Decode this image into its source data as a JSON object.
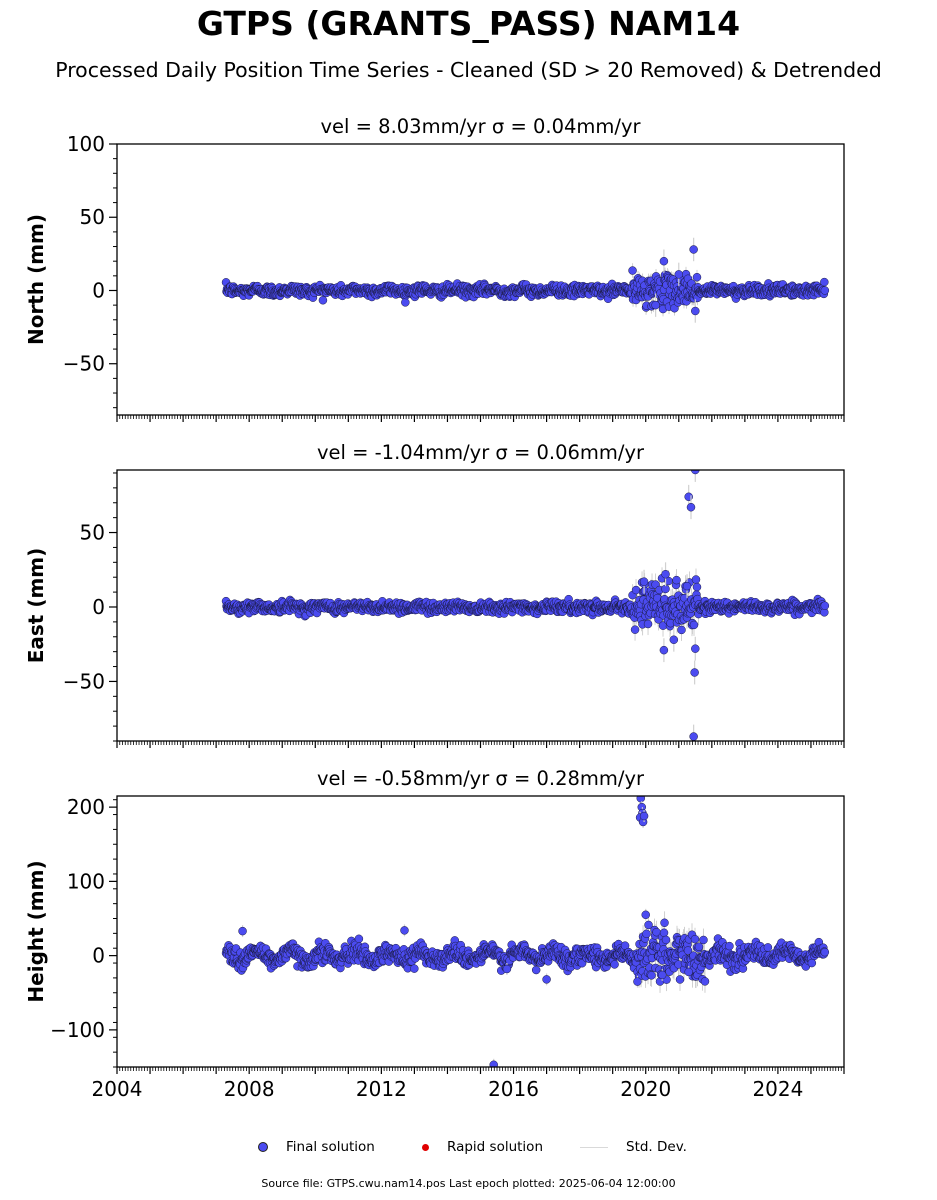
{
  "title": "GTPS (GRANTS_PASS) NAM14",
  "subtitle": "Processed Daily Position Time Series - Cleaned (SD > 20 Removed) & Detrended",
  "legend": {
    "final": "Final solution",
    "rapid": "Rapid solution",
    "sd": "Std. Dev."
  },
  "footer": "Source file: GTPS.cwu.nam14.pos  Last epoch plotted: 2025-06-04 12:00:00",
  "colors": {
    "final_marker": "#4b4bf0",
    "rapid_marker": "#e00000",
    "std_dev": "#d0d0d0"
  },
  "chart_data": [
    {
      "type": "scatter",
      "title": "vel = 8.03mm/yr   σ = 0.04mm/yr",
      "ylabel": "North (mm)",
      "xlim": [
        2004.0,
        2026.0
      ],
      "ylim": [
        -85,
        100
      ],
      "yticks": [
        -50,
        0,
        50,
        100
      ],
      "x_start": 2007.3,
      "x_end": 2025.42,
      "base_noise": 1.8,
      "x_tick_labels": [],
      "outliers": [
        {
          "x": 2020.55,
          "y": 20
        },
        {
          "x": 2021.45,
          "y": 28
        },
        {
          "x": 2021.5,
          "y": -14
        },
        {
          "x": 2021.0,
          "y": 11
        },
        {
          "x": 2020.3,
          "y": -10
        }
      ],
      "noisy_intervals": [
        {
          "x0": 2019.6,
          "x1": 2021.6,
          "amp": 5
        }
      ]
    },
    {
      "type": "scatter",
      "title": "vel = -1.04mm/yr   σ = 0.06mm/yr",
      "ylabel": "East (mm)",
      "xlim": [
        2004.0,
        2026.0
      ],
      "ylim": [
        -90,
        92
      ],
      "yticks": [
        -50,
        0,
        50
      ],
      "x_start": 2007.3,
      "x_end": 2025.42,
      "base_noise": 1.8,
      "x_tick_labels": [],
      "outliers": [
        {
          "x": 2021.3,
          "y": 74
        },
        {
          "x": 2021.37,
          "y": 67
        },
        {
          "x": 2021.5,
          "y": 92
        },
        {
          "x": 2021.48,
          "y": -44
        },
        {
          "x": 2021.5,
          "y": -28
        },
        {
          "x": 2021.45,
          "y": -87
        },
        {
          "x": 2020.55,
          "y": -29
        },
        {
          "x": 2019.95,
          "y": 17
        },
        {
          "x": 2020.6,
          "y": 22
        },
        {
          "x": 2020.85,
          "y": -22
        },
        {
          "x": 2021.25,
          "y": 14
        }
      ],
      "noisy_intervals": [
        {
          "x0": 2019.6,
          "x1": 2021.6,
          "amp": 8
        }
      ]
    },
    {
      "type": "scatter",
      "title": "vel = -0.58mm/yr   σ = 0.28mm/yr",
      "ylabel": "Height (mm)",
      "xlim": [
        2004.0,
        2026.0
      ],
      "ylim": [
        -150,
        215
      ],
      "yticks": [
        -100,
        0,
        100,
        200
      ],
      "x_start": 2007.3,
      "x_end": 2025.42,
      "base_noise": 6,
      "x_tick_labels": [
        "2004",
        "2008",
        "2012",
        "2016",
        "2020",
        "2024"
      ],
      "x_tick_values": [
        2004,
        2008,
        2012,
        2016,
        2020,
        2024
      ],
      "outliers": [
        {
          "x": 2019.85,
          "y": 212
        },
        {
          "x": 2019.88,
          "y": 200
        },
        {
          "x": 2019.9,
          "y": 192
        },
        {
          "x": 2019.83,
          "y": 186
        },
        {
          "x": 2019.92,
          "y": 180
        },
        {
          "x": 2019.95,
          "y": 188
        },
        {
          "x": 2015.4,
          "y": -147
        },
        {
          "x": 2017.0,
          "y": -32
        },
        {
          "x": 2019.75,
          "y": -35
        },
        {
          "x": 2020.5,
          "y": -26
        },
        {
          "x": 2021.3,
          "y": -22
        },
        {
          "x": 2012.7,
          "y": 34
        },
        {
          "x": 2007.8,
          "y": 33
        },
        {
          "x": 2020.0,
          "y": 55
        },
        {
          "x": 2015.8,
          "y": -18
        }
      ],
      "noisy_intervals": [
        {
          "x0": 2019.7,
          "x1": 2021.8,
          "amp": 18
        }
      ]
    }
  ]
}
